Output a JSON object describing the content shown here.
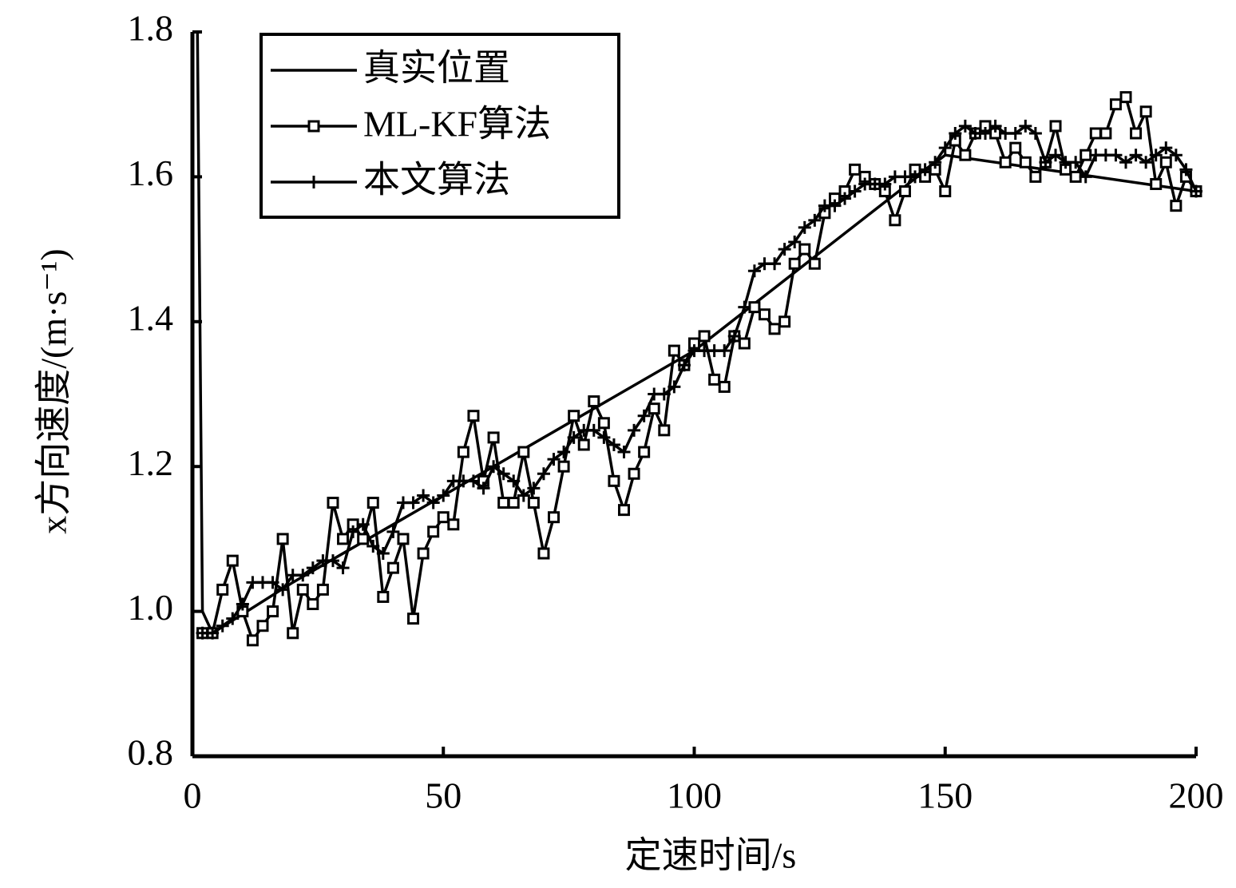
{
  "chart_data": {
    "type": "line",
    "xlabel": "定速时间/s",
    "ylabel": "x方向速度/(m·s⁻¹)",
    "xlim": [
      0,
      200
    ],
    "xticks": [
      0,
      50,
      100,
      150,
      200
    ],
    "ylim": [
      0.8,
      1.8
    ],
    "yticks": [
      0.8,
      {
        "value": 1,
        "label": "1.0"
      },
      1.2,
      1.4,
      1.6,
      1.8
    ],
    "grid": false,
    "legend": "upper left",
    "series": [
      {
        "name": "真实位置",
        "color": "#000000",
        "marker": "none",
        "x": [
          1,
          2,
          4,
          20,
          50,
          100,
          150,
          200
        ],
        "values": [
          1.8,
          1.0,
          0.97,
          1.04,
          1.16,
          1.36,
          1.63,
          1.58
        ]
      },
      {
        "name": "ML-KF算法",
        "color": "#000000",
        "marker": "square",
        "x": [
          2,
          4,
          6,
          8,
          10,
          12,
          14,
          16,
          18,
          20,
          22,
          24,
          26,
          28,
          30,
          32,
          34,
          36,
          38,
          40,
          42,
          44,
          46,
          48,
          50,
          52,
          54,
          56,
          58,
          60,
          62,
          64,
          66,
          68,
          70,
          72,
          74,
          76,
          78,
          80,
          82,
          84,
          86,
          88,
          90,
          92,
          94,
          96,
          98,
          100,
          102,
          104,
          106,
          108,
          110,
          112,
          114,
          116,
          118,
          120,
          122,
          124,
          126,
          128,
          130,
          132,
          134,
          136,
          138,
          140,
          142,
          144,
          146,
          148,
          150,
          152,
          154,
          156,
          158,
          160,
          162,
          164,
          166,
          168,
          170,
          172,
          174,
          176,
          178,
          180,
          182,
          184,
          186,
          188,
          190,
          192,
          194,
          196,
          198,
          200
        ],
        "values": [
          0.97,
          0.97,
          1.03,
          1.07,
          1.0,
          0.96,
          0.98,
          1.0,
          1.1,
          0.97,
          1.03,
          1.01,
          1.03,
          1.15,
          1.1,
          1.12,
          1.1,
          1.15,
          1.02,
          1.06,
          1.1,
          0.99,
          1.08,
          1.11,
          1.13,
          1.12,
          1.22,
          1.27,
          1.18,
          1.24,
          1.15,
          1.15,
          1.22,
          1.15,
          1.08,
          1.13,
          1.2,
          1.27,
          1.23,
          1.29,
          1.26,
          1.18,
          1.14,
          1.19,
          1.22,
          1.28,
          1.25,
          1.36,
          1.34,
          1.37,
          1.38,
          1.32,
          1.31,
          1.38,
          1.37,
          1.42,
          1.41,
          1.39,
          1.4,
          1.48,
          1.5,
          1.48,
          1.55,
          1.57,
          1.58,
          1.61,
          1.6,
          1.59,
          1.58,
          1.54,
          1.58,
          1.61,
          1.6,
          1.61,
          1.58,
          1.65,
          1.63,
          1.66,
          1.67,
          1.66,
          1.62,
          1.64,
          1.62,
          1.6,
          1.62,
          1.67,
          1.61,
          1.6,
          1.63,
          1.66,
          1.66,
          1.7,
          1.71,
          1.66,
          1.69,
          1.59,
          1.62,
          1.56,
          1.6,
          1.58
        ]
      },
      {
        "name": "本文算法",
        "color": "#000000",
        "marker": "plus",
        "x": [
          2,
          4,
          6,
          8,
          10,
          12,
          14,
          16,
          18,
          20,
          22,
          24,
          26,
          28,
          30,
          32,
          34,
          36,
          38,
          40,
          42,
          44,
          46,
          48,
          50,
          52,
          54,
          56,
          58,
          60,
          62,
          64,
          66,
          68,
          70,
          72,
          74,
          76,
          78,
          80,
          82,
          84,
          86,
          88,
          90,
          92,
          94,
          96,
          98,
          100,
          102,
          104,
          106,
          108,
          110,
          112,
          114,
          116,
          118,
          120,
          122,
          124,
          126,
          128,
          130,
          132,
          134,
          136,
          138,
          140,
          142,
          144,
          146,
          148,
          150,
          152,
          154,
          156,
          158,
          160,
          162,
          164,
          166,
          168,
          170,
          172,
          174,
          176,
          178,
          180,
          182,
          184,
          186,
          188,
          190,
          192,
          194,
          196,
          198,
          200
        ],
        "values": [
          0.97,
          0.97,
          0.98,
          0.99,
          1.01,
          1.04,
          1.04,
          1.04,
          1.03,
          1.05,
          1.05,
          1.06,
          1.07,
          1.07,
          1.06,
          1.11,
          1.12,
          1.09,
          1.08,
          1.11,
          1.15,
          1.15,
          1.16,
          1.15,
          1.16,
          1.18,
          1.18,
          1.18,
          1.17,
          1.2,
          1.19,
          1.18,
          1.16,
          1.17,
          1.19,
          1.21,
          1.22,
          1.24,
          1.25,
          1.25,
          1.24,
          1.23,
          1.22,
          1.25,
          1.27,
          1.3,
          1.3,
          1.31,
          1.34,
          1.36,
          1.36,
          1.36,
          1.36,
          1.38,
          1.42,
          1.47,
          1.48,
          1.48,
          1.5,
          1.51,
          1.53,
          1.54,
          1.56,
          1.56,
          1.57,
          1.58,
          1.59,
          1.59,
          1.59,
          1.6,
          1.6,
          1.6,
          1.61,
          1.62,
          1.64,
          1.66,
          1.67,
          1.66,
          1.66,
          1.67,
          1.66,
          1.66,
          1.67,
          1.66,
          1.62,
          1.63,
          1.62,
          1.62,
          1.6,
          1.63,
          1.63,
          1.63,
          1.62,
          1.63,
          1.62,
          1.63,
          1.64,
          1.63,
          1.61,
          1.58
        ]
      }
    ]
  }
}
